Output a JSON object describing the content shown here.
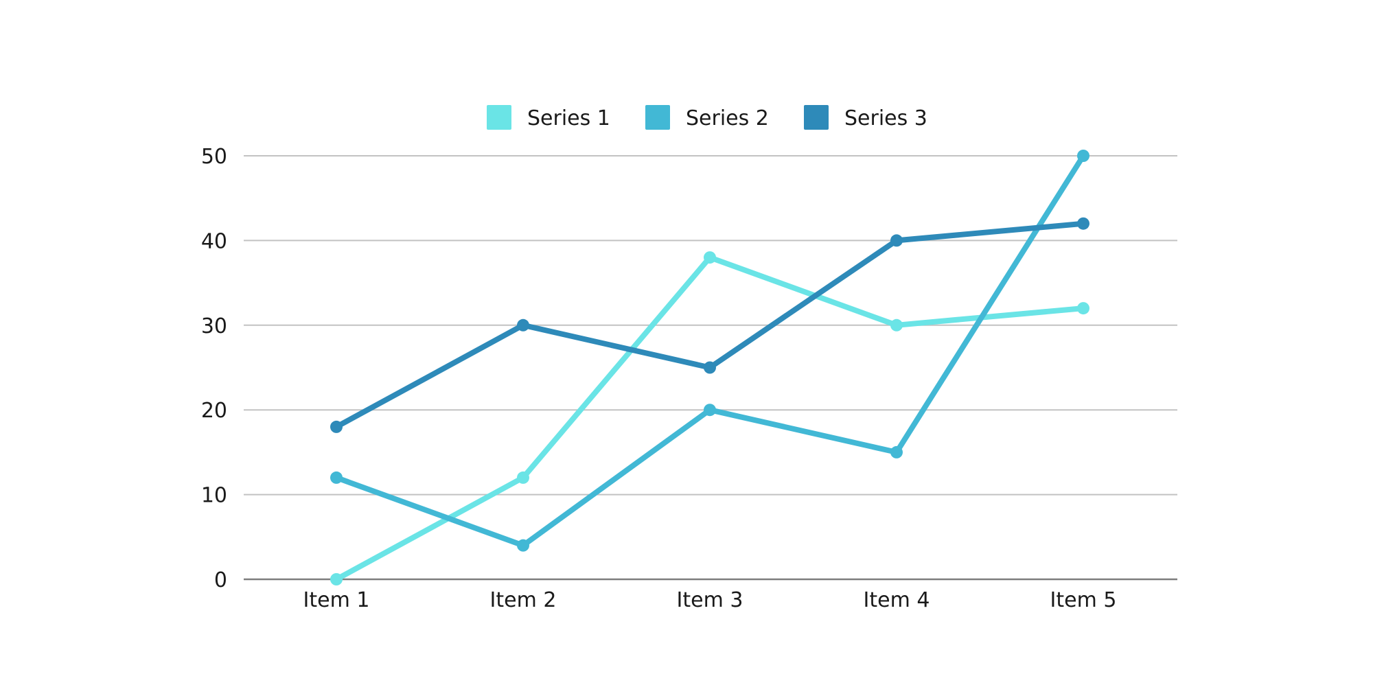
{
  "chart_data": {
    "type": "line",
    "title": "",
    "xlabel": "",
    "ylabel": "",
    "categories": [
      "Item 1",
      "Item 2",
      "Item 3",
      "Item 4",
      "Item 5"
    ],
    "ylim": [
      0,
      50
    ],
    "yticks": [
      "0",
      "10",
      "20",
      "30",
      "40",
      "50"
    ],
    "grid": true,
    "legend_position": "top-center",
    "series": [
      {
        "name": "Series 1",
        "color": "#6ae4e6",
        "values": [
          0,
          12,
          38,
          30,
          32
        ]
      },
      {
        "name": "Series 2",
        "color": "#42b8d5",
        "values": [
          12,
          4,
          20,
          15,
          50
        ]
      },
      {
        "name": "Series 3",
        "color": "#2e8ab9",
        "values": [
          18,
          30,
          25,
          40,
          42
        ]
      }
    ]
  }
}
